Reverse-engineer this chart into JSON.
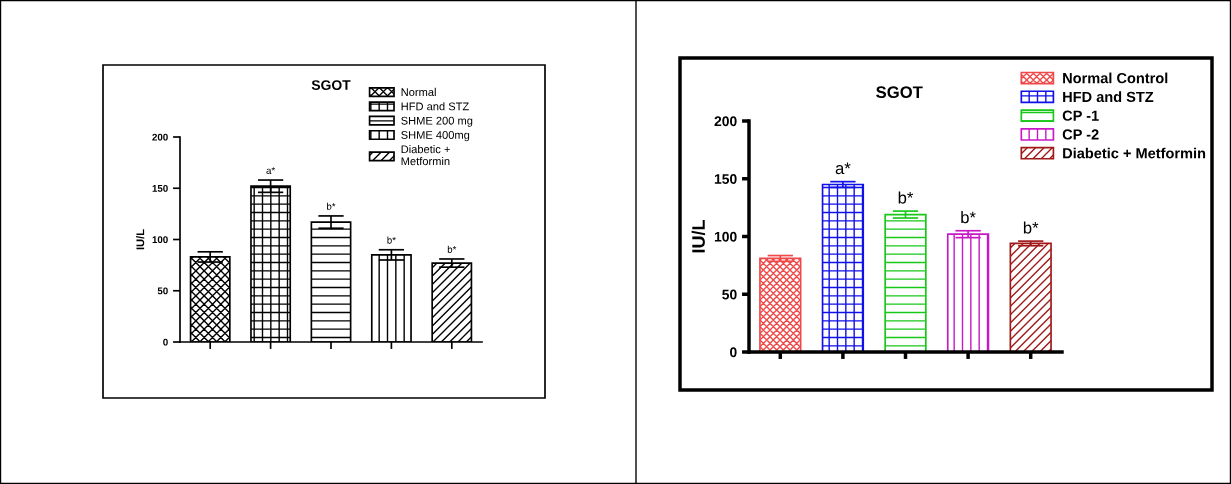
{
  "chart_data": [
    {
      "type": "bar",
      "title": "SGOT",
      "ylabel": "IU/L",
      "categories": [
        null,
        null,
        null,
        null,
        null
      ],
      "ylim": [
        0,
        200
      ],
      "yticks": [
        0,
        50,
        100,
        150,
        200
      ],
      "grid": false,
      "legend": "top right",
      "series": [
        {
          "name": "Normal",
          "color": "#000000",
          "values": [
            83,
            null,
            null,
            null,
            null
          ],
          "errors": [
            5,
            null,
            null,
            null,
            null
          ]
        },
        {
          "name": "HFD and STZ",
          "color": "#000000",
          "values": [
            null,
            152,
            null,
            null,
            null
          ],
          "errors": [
            null,
            6,
            null,
            null,
            null
          ],
          "value_labels": [
            null,
            "a*",
            null,
            null,
            null
          ]
        },
        {
          "name": "SHME 200 mg",
          "color": "#000000",
          "values": [
            null,
            null,
            117,
            null,
            null
          ],
          "errors": [
            null,
            null,
            6,
            null,
            null
          ],
          "value_labels": [
            null,
            null,
            "b*",
            null,
            null
          ]
        },
        {
          "name": "SHME 400mg",
          "color": "#000000",
          "values": [
            null,
            null,
            null,
            85,
            null
          ],
          "errors": [
            null,
            null,
            null,
            5,
            null
          ],
          "value_labels": [
            null,
            null,
            null,
            "b*",
            null
          ]
        },
        {
          "name": "Diabetic +\nMetformin",
          "color": "#000000",
          "values": [
            null,
            null,
            null,
            null,
            77
          ],
          "errors": [
            null,
            null,
            null,
            null,
            4
          ],
          "value_labels": [
            null,
            null,
            null,
            null,
            "b*"
          ]
        }
      ]
    },
    {
      "type": "bar",
      "title": "SGOT",
      "ylabel": "IU/L",
      "categories": [
        null,
        null,
        null,
        null,
        null
      ],
      "ylim": [
        0,
        200
      ],
      "yticks": [
        0,
        50,
        100,
        150,
        200
      ],
      "grid": false,
      "legend": "top right",
      "series": [
        {
          "name": "Normal Control",
          "color": "#f04848",
          "values": [
            81,
            null,
            null,
            null,
            null
          ],
          "errors": [
            2.5,
            null,
            null,
            null,
            null
          ]
        },
        {
          "name": "HFD and STZ",
          "color": "#1010e8",
          "values": [
            null,
            145,
            null,
            null,
            null
          ],
          "errors": [
            null,
            2.5,
            null,
            null,
            null
          ],
          "value_labels": [
            null,
            "a*",
            null,
            null,
            null
          ]
        },
        {
          "name": "CP -1",
          "color": "#18c818",
          "values": [
            null,
            null,
            119,
            null,
            null
          ],
          "errors": [
            null,
            null,
            3,
            null,
            null
          ],
          "value_labels": [
            null,
            null,
            "b*",
            null,
            null
          ]
        },
        {
          "name": "CP -2",
          "color": "#c818c8",
          "values": [
            null,
            null,
            null,
            102,
            null
          ],
          "errors": [
            null,
            null,
            null,
            3,
            null
          ],
          "value_labels": [
            null,
            null,
            null,
            "b*",
            null
          ]
        },
        {
          "name": "Diabetic + Metformin",
          "color": "#a01818",
          "values": [
            null,
            null,
            null,
            null,
            94
          ],
          "errors": [
            null,
            null,
            null,
            null,
            2
          ],
          "value_labels": [
            null,
            null,
            null,
            null,
            "b*"
          ]
        }
      ]
    }
  ]
}
